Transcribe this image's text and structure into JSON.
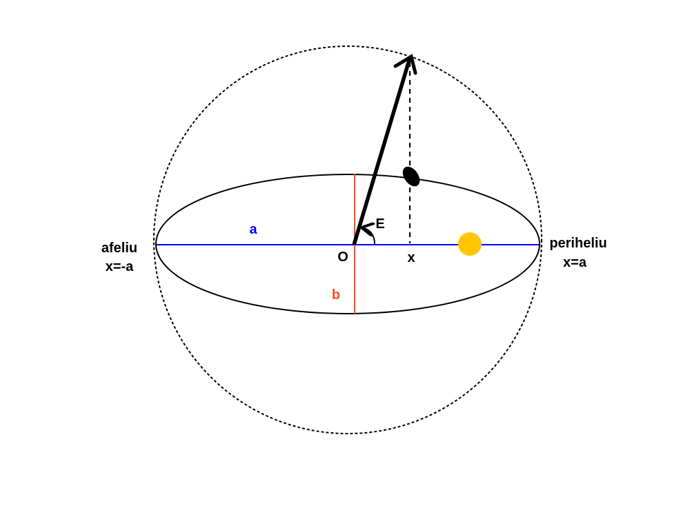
{
  "colors": {
    "semi_major_axis": "#0000ff",
    "semi_minor_axis": "#ff4a24",
    "sun": "#ffc600",
    "planet": "#000000",
    "outline": "#000000"
  },
  "labels": {
    "a": "a",
    "b": "b",
    "center": "O",
    "angle": "E",
    "x_projection": "x",
    "aphelion_name": "afeliu",
    "aphelion_coord": "x=-a",
    "perihelion_name": "periheliu",
    "perihelion_coord": "x=a"
  }
}
